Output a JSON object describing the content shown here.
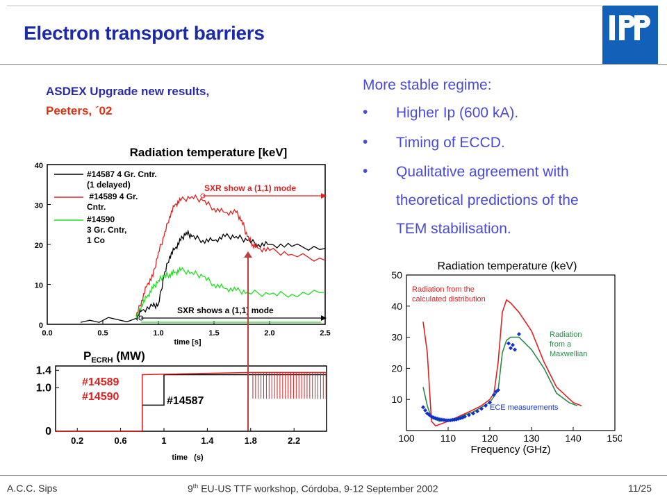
{
  "slide": {
    "title": "Electron transport barriers",
    "logo_text": "IPP",
    "subtitle_line1": "ASDEX Upgrade new results,",
    "subtitle_line2": "Peeters, ´02",
    "right_text": {
      "intro": "More stable regime:",
      "bullets": [
        {
          "symbol": "•",
          "lines": [
            "Higher Ip (600 kA)."
          ]
        },
        {
          "symbol": "•",
          "lines": [
            "Timing of ECCD."
          ]
        },
        {
          "symbol": "•",
          "lines": [
            "Qualitative agreement with",
            "theoretical predictions of the",
            "TEM stabilisation."
          ]
        }
      ]
    },
    "footer": {
      "author": "A.C.C. Sips",
      "event_sup": "th",
      "event_num": "9",
      "event_rest": " EU-US TTF workshop, Córdoba, 9-12 September 2002",
      "page": "11/25"
    },
    "colors": {
      "title": "#1a2aa8",
      "accent_red": "#e03010",
      "text_blue": "#4a4ad8",
      "logo": "#1260b8"
    }
  },
  "chart_data": [
    {
      "type": "line",
      "title": "Radiation temperature [keV]",
      "xlabel": "time [s]",
      "ylabel": "",
      "xlim": [
        0.0,
        2.5
      ],
      "ylim": [
        0,
        40
      ],
      "xticks": [
        "0.0",
        "0.5",
        "1.0",
        "1.5",
        "2.0",
        "2.5"
      ],
      "yticks": [
        "0",
        "10",
        "20",
        "30",
        "40"
      ],
      "legend": [
        {
          "label_lines": [
            "#14587  4 Gr. Cntr.",
            "(1 delayed)"
          ],
          "color": "#000000"
        },
        {
          "label_lines": [
            " #14589 4 Gr.",
            "Cntr."
          ],
          "color": "#e02020"
        },
        {
          "label_lines": [
            "#14590",
            "3 Gr. Cntr,",
            "1 Co"
          ],
          "color": "#20e020"
        }
      ],
      "annotations": [
        "SXR show a (1,1) mode",
        "SXR shows a (1,1) mode"
      ],
      "series": [
        {
          "name": "#14587",
          "color": "#000000",
          "x": [
            0.3,
            0.8,
            0.85,
            0.95,
            1.0,
            1.05,
            1.1,
            1.15,
            1.2,
            1.25,
            1.3,
            1.4,
            1.5,
            1.6,
            1.7,
            1.8,
            1.9,
            2.0,
            2.2,
            2.5
          ],
          "y": [
            0.5,
            1.5,
            3.5,
            4.5,
            5,
            12,
            17,
            19,
            21,
            23,
            22,
            21,
            21,
            22,
            22,
            21,
            20,
            20,
            19.5,
            19
          ]
        },
        {
          "name": "#14589",
          "color": "#e02020",
          "x": [
            0.8,
            0.85,
            0.9,
            0.95,
            1.0,
            1.05,
            1.1,
            1.15,
            1.2,
            1.3,
            1.4,
            1.5,
            1.6,
            1.7,
            1.75,
            1.8,
            1.85,
            1.9,
            2.0,
            2.2,
            2.5
          ],
          "y": [
            2,
            6,
            10,
            12,
            18,
            22,
            27,
            30,
            31,
            32,
            31,
            29,
            28,
            28,
            26,
            22,
            20,
            19,
            18.5,
            17.5,
            16
          ]
        },
        {
          "name": "#14590",
          "color": "#20e020",
          "x": [
            0.8,
            0.85,
            0.9,
            0.95,
            1.0,
            1.05,
            1.1,
            1.15,
            1.2,
            1.3,
            1.4,
            1.5,
            1.6,
            1.7,
            1.8,
            2.0,
            2.2,
            2.5
          ],
          "y": [
            1.5,
            5,
            7,
            9,
            11,
            12,
            12.5,
            13,
            13.5,
            13,
            12,
            10,
            9,
            8.5,
            8,
            7.5,
            7.5,
            8
          ]
        }
      ]
    },
    {
      "type": "line",
      "title": "P",
      "title_sub": "ECRH",
      "title_rest": " (MW)",
      "xlabel": "time   (s)",
      "xlim": [
        0.0,
        2.5
      ],
      "ylim": [
        0,
        1.5
      ],
      "xticks": [
        "0.2",
        "0.6",
        "1",
        "1.4",
        "1.8",
        "2.2"
      ],
      "yticks": [
        "0",
        "1.0",
        "1.4"
      ],
      "labels": [
        {
          "text": "#14589",
          "color": "#e02020"
        },
        {
          "text": "#14590",
          "color": "#e02020"
        },
        {
          "text": "#14587",
          "color": "#000000"
        }
      ],
      "series": [
        {
          "name": "#14587",
          "color": "#000000",
          "x": [
            0.0,
            0.8,
            0.8,
            1.0,
            1.0,
            2.5
          ],
          "y": [
            0,
            0,
            0.6,
            0.6,
            1.3,
            1.3
          ]
        },
        {
          "name": "#14589",
          "color": "#e02020",
          "x": [
            0.0,
            0.8,
            0.8,
            1.8,
            2.5
          ],
          "y": [
            0,
            0,
            1.3,
            1.35,
            1.35
          ]
        }
      ]
    },
    {
      "type": "line",
      "title": "Radiation temperature (keV)",
      "xlabel": "Frequency (GHz)",
      "xlim": [
        100,
        150
      ],
      "ylim": [
        0,
        50
      ],
      "xticks": [
        "100",
        "110",
        "120",
        "130",
        "140",
        "150"
      ],
      "yticks": [
        "10",
        "20",
        "30",
        "40",
        "50"
      ],
      "annotations": [
        {
          "lines": [
            "Radiation from the",
            "calculated distribution"
          ],
          "color": "#e02020"
        },
        {
          "lines": [
            "Radiation",
            "from a",
            "Maxwellian"
          ],
          "color": "#2a8a4a"
        },
        {
          "lines": [
            "ECE measurements"
          ],
          "color": "#1030d0"
        }
      ],
      "series": [
        {
          "name": "Radiation from the calculated distribution",
          "color": "#e02020",
          "x": [
            104,
            105,
            106,
            107,
            110,
            115,
            118,
            120,
            121,
            122,
            123,
            124,
            125,
            127,
            130,
            133,
            136,
            140,
            142
          ],
          "y": [
            35,
            25,
            3,
            1.5,
            3,
            6,
            8,
            10,
            12,
            22,
            38,
            42,
            41,
            38,
            32,
            22,
            14,
            9,
            8
          ]
        },
        {
          "name": "Radiation from a Maxwellian",
          "color": "#2a8a4a",
          "x": [
            104,
            105,
            106,
            108,
            112,
            116,
            120,
            122,
            123,
            124,
            125,
            127,
            130,
            133,
            136,
            139,
            141
          ],
          "y": [
            14,
            8,
            4,
            3,
            4,
            6,
            9,
            13,
            25,
            29,
            30,
            30,
            26,
            20,
            12,
            9,
            8
          ]
        },
        {
          "name": "ECE measurements",
          "color": "#1030d0",
          "type": "scatter",
          "x": [
            104,
            104.5,
            105,
            105.5,
            106,
            106.5,
            107,
            107.5,
            108,
            108.5,
            109,
            109.5,
            110,
            110.5,
            111,
            111.5,
            112,
            112.5,
            113,
            113.5,
            114,
            115,
            116,
            117,
            118,
            119,
            120,
            121,
            121.5,
            122,
            124.5,
            125,
            125.5,
            126,
            127
          ],
          "y": [
            7.5,
            6.5,
            5.5,
            5,
            4.5,
            4.2,
            4,
            3.8,
            3.6,
            3.5,
            3.4,
            3.3,
            3.3,
            3.3,
            3.4,
            3.5,
            3.6,
            3.8,
            4,
            4.2,
            4.5,
            5,
            5.5,
            6.2,
            7,
            8,
            9,
            11.5,
            12.5,
            13,
            28,
            26.5,
            27.5,
            26,
            31
          ]
        }
      ]
    }
  ]
}
